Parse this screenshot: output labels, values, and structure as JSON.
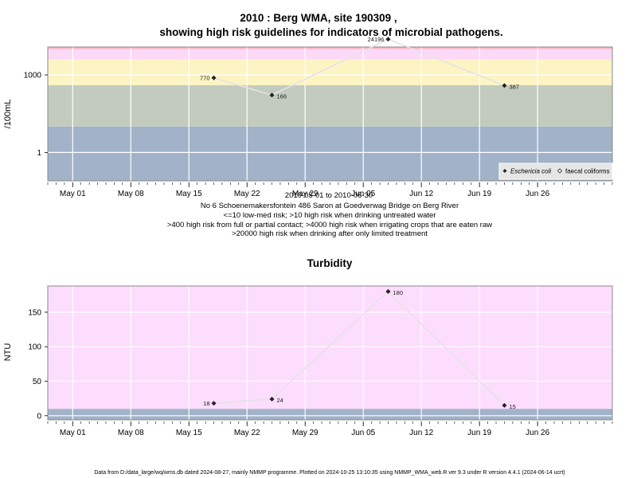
{
  "chart_data": [
    {
      "type": "line",
      "title": "2010 : Berg WMA, site 190309 ,",
      "subtitle": "showing high risk guidelines for indicators of microbial pathogens.",
      "ylabel": "/100mL",
      "yscale": "log",
      "ylim": [
        0.08,
        12000
      ],
      "yticks": [
        1,
        1000
      ],
      "yticklabels": [
        "1",
        "1000"
      ],
      "xlim": [
        "2010-04-28",
        "2010-07-05"
      ],
      "xticks": [
        "2010-05-01",
        "2010-05-08",
        "2010-05-15",
        "2010-05-22",
        "2010-05-29",
        "2010-06-05",
        "2010-06-12",
        "2010-06-19",
        "2010-06-26"
      ],
      "xticklabels": [
        "May 01",
        "May 08",
        "May 15",
        "May 22",
        "May 29",
        "Jun 05",
        "Jun 12",
        "Jun 19",
        "Jun 26"
      ],
      "bands": [
        {
          "from": 0.08,
          "to": 10,
          "color": "#a2b3c9"
        },
        {
          "from": 10,
          "to": 400,
          "color": "#c3cbbf"
        },
        {
          "from": 400,
          "to": 4000,
          "color": "#fdf4c4"
        },
        {
          "from": 4000,
          "to": 10000,
          "color": "#fdd9f8"
        },
        {
          "from": 10000,
          "to": 12000,
          "color": "#fbb4c4"
        }
      ],
      "series": [
        {
          "name": "Eschericia coli",
          "x": [
            "2010-05-18",
            "2010-05-25",
            "2010-06-08",
            "2010-06-22"
          ],
          "values": [
            770,
            166,
            24196,
            387
          ],
          "labels": [
            "770",
            "166",
            "24196",
            "387"
          ]
        },
        {
          "name": "faecal coliforms",
          "x": [],
          "values": [],
          "labels": []
        }
      ],
      "legend": "bottom-right",
      "xcaption": "2010-05-01 to 2010-06-30",
      "notes": [
        "No 6 Schoenemakersfontein 486 Saron at Goedverwag Bridge on Berg River",
        "<=10 low-med risk; >10 high risk when drinking untreated water",
        ">400 high risk from full or partial contact; >4000 high risk when irrigating crops that are eaten raw",
        ">20000 high risk when drinking after only limited treatment"
      ]
    },
    {
      "type": "line",
      "title": "Turbidity",
      "ylabel": "NTU",
      "ylim": [
        -6,
        188
      ],
      "yticks": [
        0,
        50,
        100,
        150
      ],
      "yticklabels": [
        "0",
        "50",
        "100",
        "150"
      ],
      "xlim": [
        "2010-04-28",
        "2010-07-05"
      ],
      "xticks": [
        "2010-05-01",
        "2010-05-08",
        "2010-05-15",
        "2010-05-22",
        "2010-05-29",
        "2010-06-05",
        "2010-06-12",
        "2010-06-19",
        "2010-06-26"
      ],
      "xticklabels": [
        "May 01",
        "May 08",
        "May 15",
        "May 22",
        "May 29",
        "Jun 05",
        "Jun 12",
        "Jun 19",
        "Jun 26"
      ],
      "bands": [
        {
          "from": -6,
          "to": 10,
          "color": "#a2b3c9"
        },
        {
          "from": 10,
          "to": 188,
          "color": "#fdddfd"
        }
      ],
      "series": [
        {
          "x": [
            "2010-05-18",
            "2010-05-25",
            "2010-06-08",
            "2010-06-22"
          ],
          "values": [
            18,
            24,
            180,
            15
          ],
          "labels": [
            "18",
            "24",
            "180",
            "15"
          ]
        }
      ]
    }
  ],
  "footer": "Data from D:/data_large/wq/wms.db dated 2024-08-27, mainly NMMP programme. Plotted on 2024-10-25 13:10:35 using NMMP_WMA_web.R ver 9.3 under R version 4.4.1 (2024-06-14 ucrt)",
  "colors": {
    "line": "#e3e3e3",
    "point": "#222222",
    "grid": "#ffffff",
    "frame": "#888888"
  }
}
